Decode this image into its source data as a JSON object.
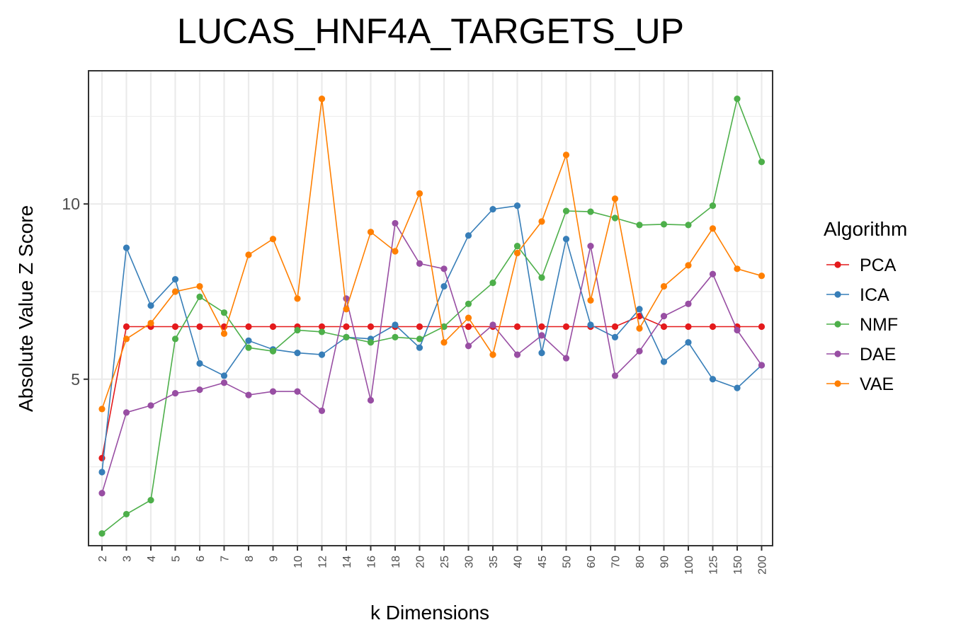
{
  "chart_data": {
    "type": "line",
    "title": "LUCAS_HNF4A_TARGETS_UP",
    "xlabel": "k Dimensions",
    "ylabel": "Absolute Value Z Score",
    "ylim": [
      0.25,
      13.8
    ],
    "yticks": [
      5,
      10
    ],
    "grid": true,
    "legend": {
      "title": "Algorithm",
      "position": "right"
    },
    "categories": [
      "2",
      "3",
      "4",
      "5",
      "6",
      "7",
      "8",
      "9",
      "10",
      "12",
      "14",
      "16",
      "18",
      "20",
      "25",
      "30",
      "35",
      "40",
      "45",
      "50",
      "60",
      "70",
      "80",
      "90",
      "100",
      "125",
      "150",
      "200"
    ],
    "series": [
      {
        "name": "PCA",
        "color": "#E41A1C",
        "values": [
          2.75,
          6.5,
          6.5,
          6.5,
          6.5,
          6.5,
          6.5,
          6.5,
          6.5,
          6.5,
          6.5,
          6.5,
          6.5,
          6.5,
          6.5,
          6.5,
          6.5,
          6.5,
          6.5,
          6.5,
          6.5,
          6.5,
          6.8,
          6.5,
          6.5,
          6.5,
          6.5,
          6.5
        ]
      },
      {
        "name": "ICA",
        "color": "#377EB8",
        "values": [
          2.35,
          8.75,
          7.1,
          7.85,
          5.45,
          5.1,
          6.1,
          5.85,
          5.75,
          5.7,
          6.2,
          6.15,
          6.55,
          5.9,
          7.65,
          9.1,
          9.85,
          9.95,
          5.75,
          9.0,
          6.55,
          6.2,
          7.0,
          5.5,
          6.05,
          5.0,
          4.75,
          5.4
        ]
      },
      {
        "name": "NMF",
        "color": "#4DAF4A",
        "values": [
          0.6,
          1.15,
          1.55,
          6.15,
          7.35,
          6.9,
          5.9,
          5.8,
          6.4,
          6.35,
          6.2,
          6.05,
          6.2,
          6.15,
          6.5,
          7.15,
          7.75,
          8.8,
          7.9,
          9.8,
          9.78,
          9.6,
          9.4,
          9.42,
          9.4,
          9.95,
          13.0,
          11.2
        ]
      },
      {
        "name": "DAE",
        "color": "#984EA3",
        "values": [
          1.75,
          4.05,
          4.25,
          4.6,
          4.7,
          4.9,
          4.55,
          4.65,
          4.65,
          4.1,
          7.3,
          4.4,
          9.45,
          8.3,
          8.15,
          5.95,
          6.55,
          5.7,
          6.25,
          5.6,
          8.8,
          5.1,
          5.8,
          6.8,
          7.15,
          8.0,
          6.4,
          5.4
        ]
      },
      {
        "name": "VAE",
        "color": "#FF7F00",
        "values": [
          4.15,
          6.15,
          6.6,
          7.5,
          7.65,
          6.3,
          8.55,
          9.0,
          7.3,
          13.0,
          7.0,
          9.2,
          8.65,
          10.3,
          6.05,
          6.75,
          5.7,
          8.6,
          9.5,
          11.4,
          7.25,
          10.15,
          6.45,
          7.65,
          8.25,
          9.3,
          8.15,
          7.95
        ]
      }
    ]
  }
}
